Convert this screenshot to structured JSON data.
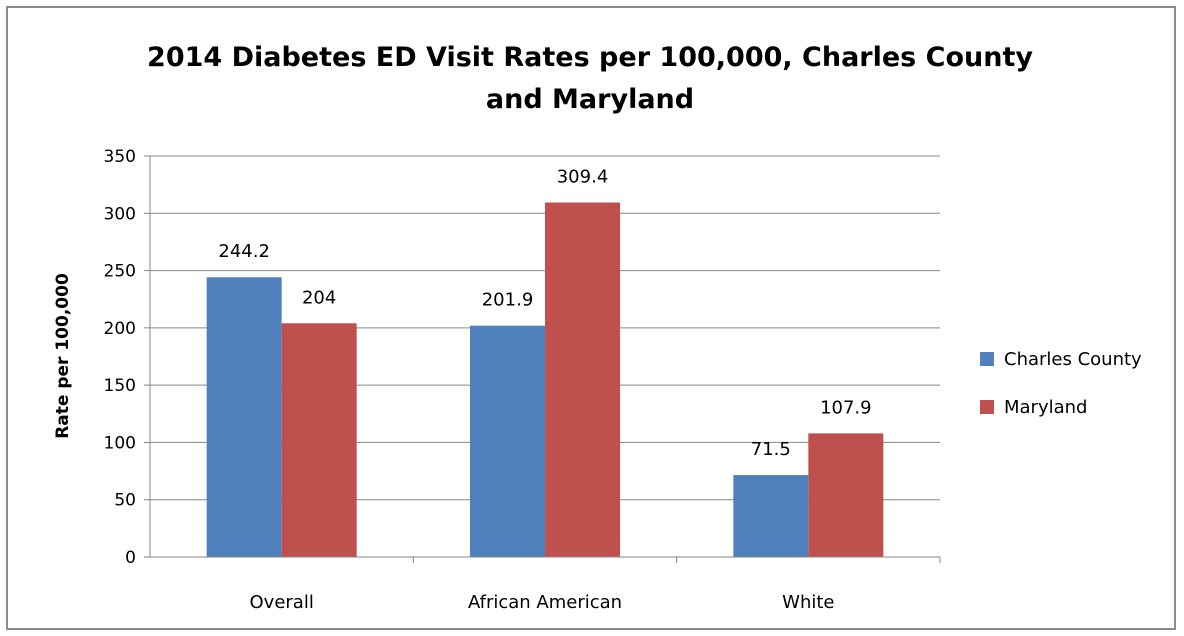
{
  "chart_data": {
    "type": "bar",
    "title": "2014 Diabetes ED Visit Rates per 100,000, Charles County and Maryland",
    "title_lines": [
      "2014 Diabetes ED Visit Rates per 100,000, Charles County",
      "and Maryland"
    ],
    "xlabel": "",
    "ylabel": "Rate per 100,000",
    "categories": [
      "Overall",
      "African American",
      "White"
    ],
    "series": [
      {
        "name": "Charles County",
        "values": [
          244.2,
          201.9,
          71.5
        ],
        "labels": [
          "244.2",
          "201.9",
          "71.5"
        ],
        "color": "#4f81bd"
      },
      {
        "name": "Maryland",
        "values": [
          204,
          309.4,
          107.9
        ],
        "labels": [
          "204",
          "309.4",
          "107.9"
        ],
        "color": "#c0504d"
      }
    ],
    "ylim": [
      0,
      350
    ],
    "yticks": [
      0,
      50,
      100,
      150,
      200,
      250,
      300,
      350
    ],
    "grid": true,
    "legend_position": "right"
  }
}
